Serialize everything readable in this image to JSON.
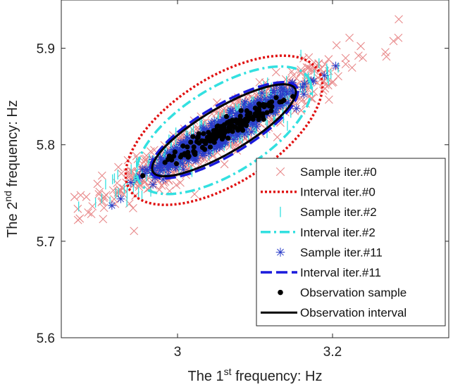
{
  "chart_data": {
    "type": "scatter",
    "title": "",
    "xlabel": {
      "pre": "The 1",
      "sup": "st",
      "post": " frequency: Hz"
    },
    "ylabel": {
      "pre": "The 2",
      "sup": "nd",
      "post": " frequency: Hz"
    },
    "xlim": [
      2.85,
      3.35
    ],
    "ylim": [
      5.6,
      5.95
    ],
    "xticks": [
      3.0,
      3.2
    ],
    "xtick_labels": [
      "3",
      "3.2"
    ],
    "yticks": [
      5.6,
      5.7,
      5.8,
      5.9
    ],
    "ytick_labels": [
      "5.6",
      "5.7",
      "5.8",
      "5.9"
    ],
    "grid": false,
    "legend_position": "bottom-right",
    "series": [
      {
        "name": "Sample iter.#0",
        "kind": "samples",
        "marker": "x",
        "color": "#e8898a",
        "cx": 3.06,
        "cy": 5.815,
        "sx": 0.075,
        "sy": 0.035,
        "corr": 0.93,
        "n": 650
      },
      {
        "name": "Interval iter.#0",
        "kind": "ellipse",
        "style": "dotted",
        "color": "#e01010",
        "cx": 3.06,
        "cy": 5.815,
        "semi_axes": [
          0.137,
          0.0575
        ],
        "axis_angle": [
          0.9095,
          0.4157
        ],
        "width": 3.5
      },
      {
        "name": "Sample iter.#2",
        "kind": "samples",
        "marker": "|",
        "color": "#33e0e0",
        "cx": 3.06,
        "cy": 5.815,
        "sx": 0.06,
        "sy": 0.028,
        "corr": 0.93,
        "n": 400
      },
      {
        "name": "Interval iter.#2",
        "kind": "ellipse",
        "style": "dashdot",
        "color": "#33e0e0",
        "cx": 3.06,
        "cy": 5.815,
        "semi_axes": [
          0.122,
          0.0466
        ],
        "axis_angle": [
          0.9095,
          0.4157
        ],
        "width": 3.5
      },
      {
        "name": "Sample iter.#11",
        "kind": "samples",
        "marker": "*",
        "color": "#2a3cc8",
        "cx": 3.06,
        "cy": 5.815,
        "sx": 0.045,
        "sy": 0.021,
        "corr": 0.95,
        "n": 600
      },
      {
        "name": "Interval iter.#11",
        "kind": "ellipse",
        "style": "dashed",
        "color": "#1a1adc",
        "cx": 3.06,
        "cy": 5.815,
        "semi_axes": [
          0.1041,
          0.0271
        ],
        "axis_angle": [
          0.9095,
          0.4157
        ],
        "width": 3.5
      },
      {
        "name": "Observation sample",
        "kind": "samples",
        "marker": "dot",
        "color": "#000000",
        "cx": 3.06,
        "cy": 5.815,
        "sx": 0.035,
        "sy": 0.016,
        "corr": 0.96,
        "n": 170
      },
      {
        "name": "Observation interval",
        "kind": "ellipse",
        "style": "solid",
        "color": "#000000",
        "cx": 3.06,
        "cy": 5.815,
        "semi_axes": [
          0.1014,
          0.0244
        ],
        "axis_angle": [
          0.9095,
          0.4157
        ],
        "width": 3
      }
    ]
  }
}
